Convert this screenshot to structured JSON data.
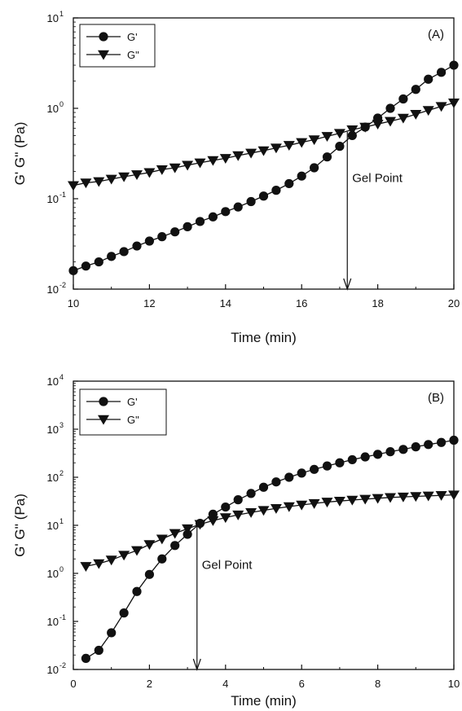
{
  "chart_data": [
    {
      "type": "line",
      "panel_label": "(A)",
      "xlabel": "Time (min)",
      "ylabel": "G' G'' (Pa)",
      "x_scale": "linear",
      "y_scale": "log",
      "xlim": [
        10,
        20
      ],
      "ylim": [
        0.01,
        10
      ],
      "x_ticks": [
        10,
        12,
        14,
        16,
        18,
        20
      ],
      "x_tick_labels": [
        "10",
        "12",
        "14",
        "16",
        "18",
        "20"
      ],
      "y_ticks": [
        0.01,
        0.1,
        1,
        10
      ],
      "y_tick_labels": [
        {
          "base": "10",
          "exp": "-2"
        },
        {
          "base": "10",
          "exp": "-1"
        },
        {
          "base": "10",
          "exp": "0"
        },
        {
          "base": "10",
          "exp": "1"
        }
      ],
      "grid": false,
      "legend_position": "top-left",
      "series": [
        {
          "name": "G'",
          "marker": "circle",
          "color": "#111111",
          "x": [
            10.0,
            10.33,
            10.67,
            11.0,
            11.33,
            11.67,
            12.0,
            12.33,
            12.67,
            13.0,
            13.33,
            13.67,
            14.0,
            14.33,
            14.67,
            15.0,
            15.33,
            15.67,
            16.0,
            16.33,
            16.67,
            17.0,
            17.33,
            17.67,
            18.0,
            18.33,
            18.67,
            19.0,
            19.33,
            19.67,
            20.0
          ],
          "y": [
            0.016,
            0.018,
            0.02,
            0.023,
            0.026,
            0.03,
            0.034,
            0.038,
            0.043,
            0.049,
            0.056,
            0.063,
            0.072,
            0.081,
            0.093,
            0.107,
            0.124,
            0.147,
            0.178,
            0.22,
            0.29,
            0.38,
            0.5,
            0.62,
            0.78,
            1.0,
            1.27,
            1.62,
            2.1,
            2.5,
            3.0
          ]
        },
        {
          "name": "G\"",
          "marker": "triangle-down",
          "color": "#111111",
          "x": [
            10.0,
            10.33,
            10.67,
            11.0,
            11.33,
            11.67,
            12.0,
            12.33,
            12.67,
            13.0,
            13.33,
            13.67,
            14.0,
            14.33,
            14.67,
            15.0,
            15.33,
            15.67,
            16.0,
            16.33,
            16.67,
            17.0,
            17.33,
            17.67,
            18.0,
            18.33,
            18.67,
            19.0,
            19.33,
            19.67,
            20.0
          ],
          "y": [
            0.14,
            0.15,
            0.155,
            0.165,
            0.175,
            0.185,
            0.195,
            0.21,
            0.22,
            0.235,
            0.25,
            0.265,
            0.28,
            0.3,
            0.32,
            0.34,
            0.365,
            0.39,
            0.42,
            0.45,
            0.49,
            0.53,
            0.58,
            0.62,
            0.67,
            0.72,
            0.78,
            0.86,
            0.95,
            1.05,
            1.15
          ]
        }
      ],
      "annotations": [
        {
          "text": "Gel Point",
          "type": "arrow",
          "x": 17.2,
          "y_from": 0.55,
          "y_to": 0.01
        }
      ]
    },
    {
      "type": "line",
      "panel_label": "(B)",
      "xlabel": "Time (min)",
      "ylabel": "G' G'' (Pa)",
      "x_scale": "linear",
      "y_scale": "log",
      "xlim": [
        0,
        10
      ],
      "ylim": [
        0.01,
        10000
      ],
      "x_ticks": [
        0,
        2,
        4,
        6,
        8,
        10
      ],
      "x_tick_labels": [
        "0",
        "2",
        "4",
        "6",
        "8",
        "10"
      ],
      "y_ticks": [
        0.01,
        0.1,
        1,
        10,
        100,
        1000,
        10000
      ],
      "y_tick_labels": [
        {
          "base": "10",
          "exp": "-2"
        },
        {
          "base": "10",
          "exp": "-1"
        },
        {
          "base": "10",
          "exp": "0"
        },
        {
          "base": "10",
          "exp": "1"
        },
        {
          "base": "10",
          "exp": "2"
        },
        {
          "base": "10",
          "exp": "3"
        },
        {
          "base": "10",
          "exp": "4"
        }
      ],
      "grid": false,
      "legend_position": "top-left",
      "series": [
        {
          "name": "G'",
          "marker": "circle",
          "color": "#111111",
          "x": [
            0.33,
            0.67,
            1.0,
            1.33,
            1.67,
            2.0,
            2.33,
            2.67,
            3.0,
            3.33,
            3.67,
            4.0,
            4.33,
            4.67,
            5.0,
            5.33,
            5.67,
            6.0,
            6.33,
            6.67,
            7.0,
            7.33,
            7.67,
            8.0,
            8.33,
            8.67,
            9.0,
            9.33,
            9.67,
            10.0
          ],
          "y": [
            0.017,
            0.025,
            0.058,
            0.15,
            0.42,
            0.95,
            2.0,
            3.8,
            6.5,
            11,
            17,
            24,
            34,
            46,
            62,
            80,
            100,
            122,
            146,
            172,
            200,
            232,
            265,
            300,
            340,
            380,
            430,
            480,
            530,
            590
          ]
        },
        {
          "name": "G\"",
          "marker": "triangle-down",
          "color": "#111111",
          "x": [
            0.33,
            0.67,
            1.0,
            1.33,
            1.67,
            2.0,
            2.33,
            2.67,
            3.0,
            3.33,
            3.67,
            4.0,
            4.33,
            4.67,
            5.0,
            5.33,
            5.67,
            6.0,
            6.33,
            6.67,
            7.0,
            7.33,
            7.67,
            8.0,
            8.33,
            8.67,
            9.0,
            9.33,
            9.67,
            10.0
          ],
          "y": [
            1.4,
            1.6,
            1.9,
            2.4,
            3.0,
            4.0,
            5.2,
            6.8,
            8.5,
            10.5,
            12.5,
            14.5,
            16.5,
            18.5,
            20.5,
            22.5,
            24.5,
            26.5,
            28.5,
            30.5,
            32,
            33.5,
            35,
            36.5,
            38,
            39,
            40,
            41,
            42,
            43
          ]
        }
      ],
      "annotations": [
        {
          "text": "Gel Point",
          "type": "arrow",
          "x": 3.25,
          "y_from": 10,
          "y_to": 0.01
        }
      ]
    }
  ]
}
